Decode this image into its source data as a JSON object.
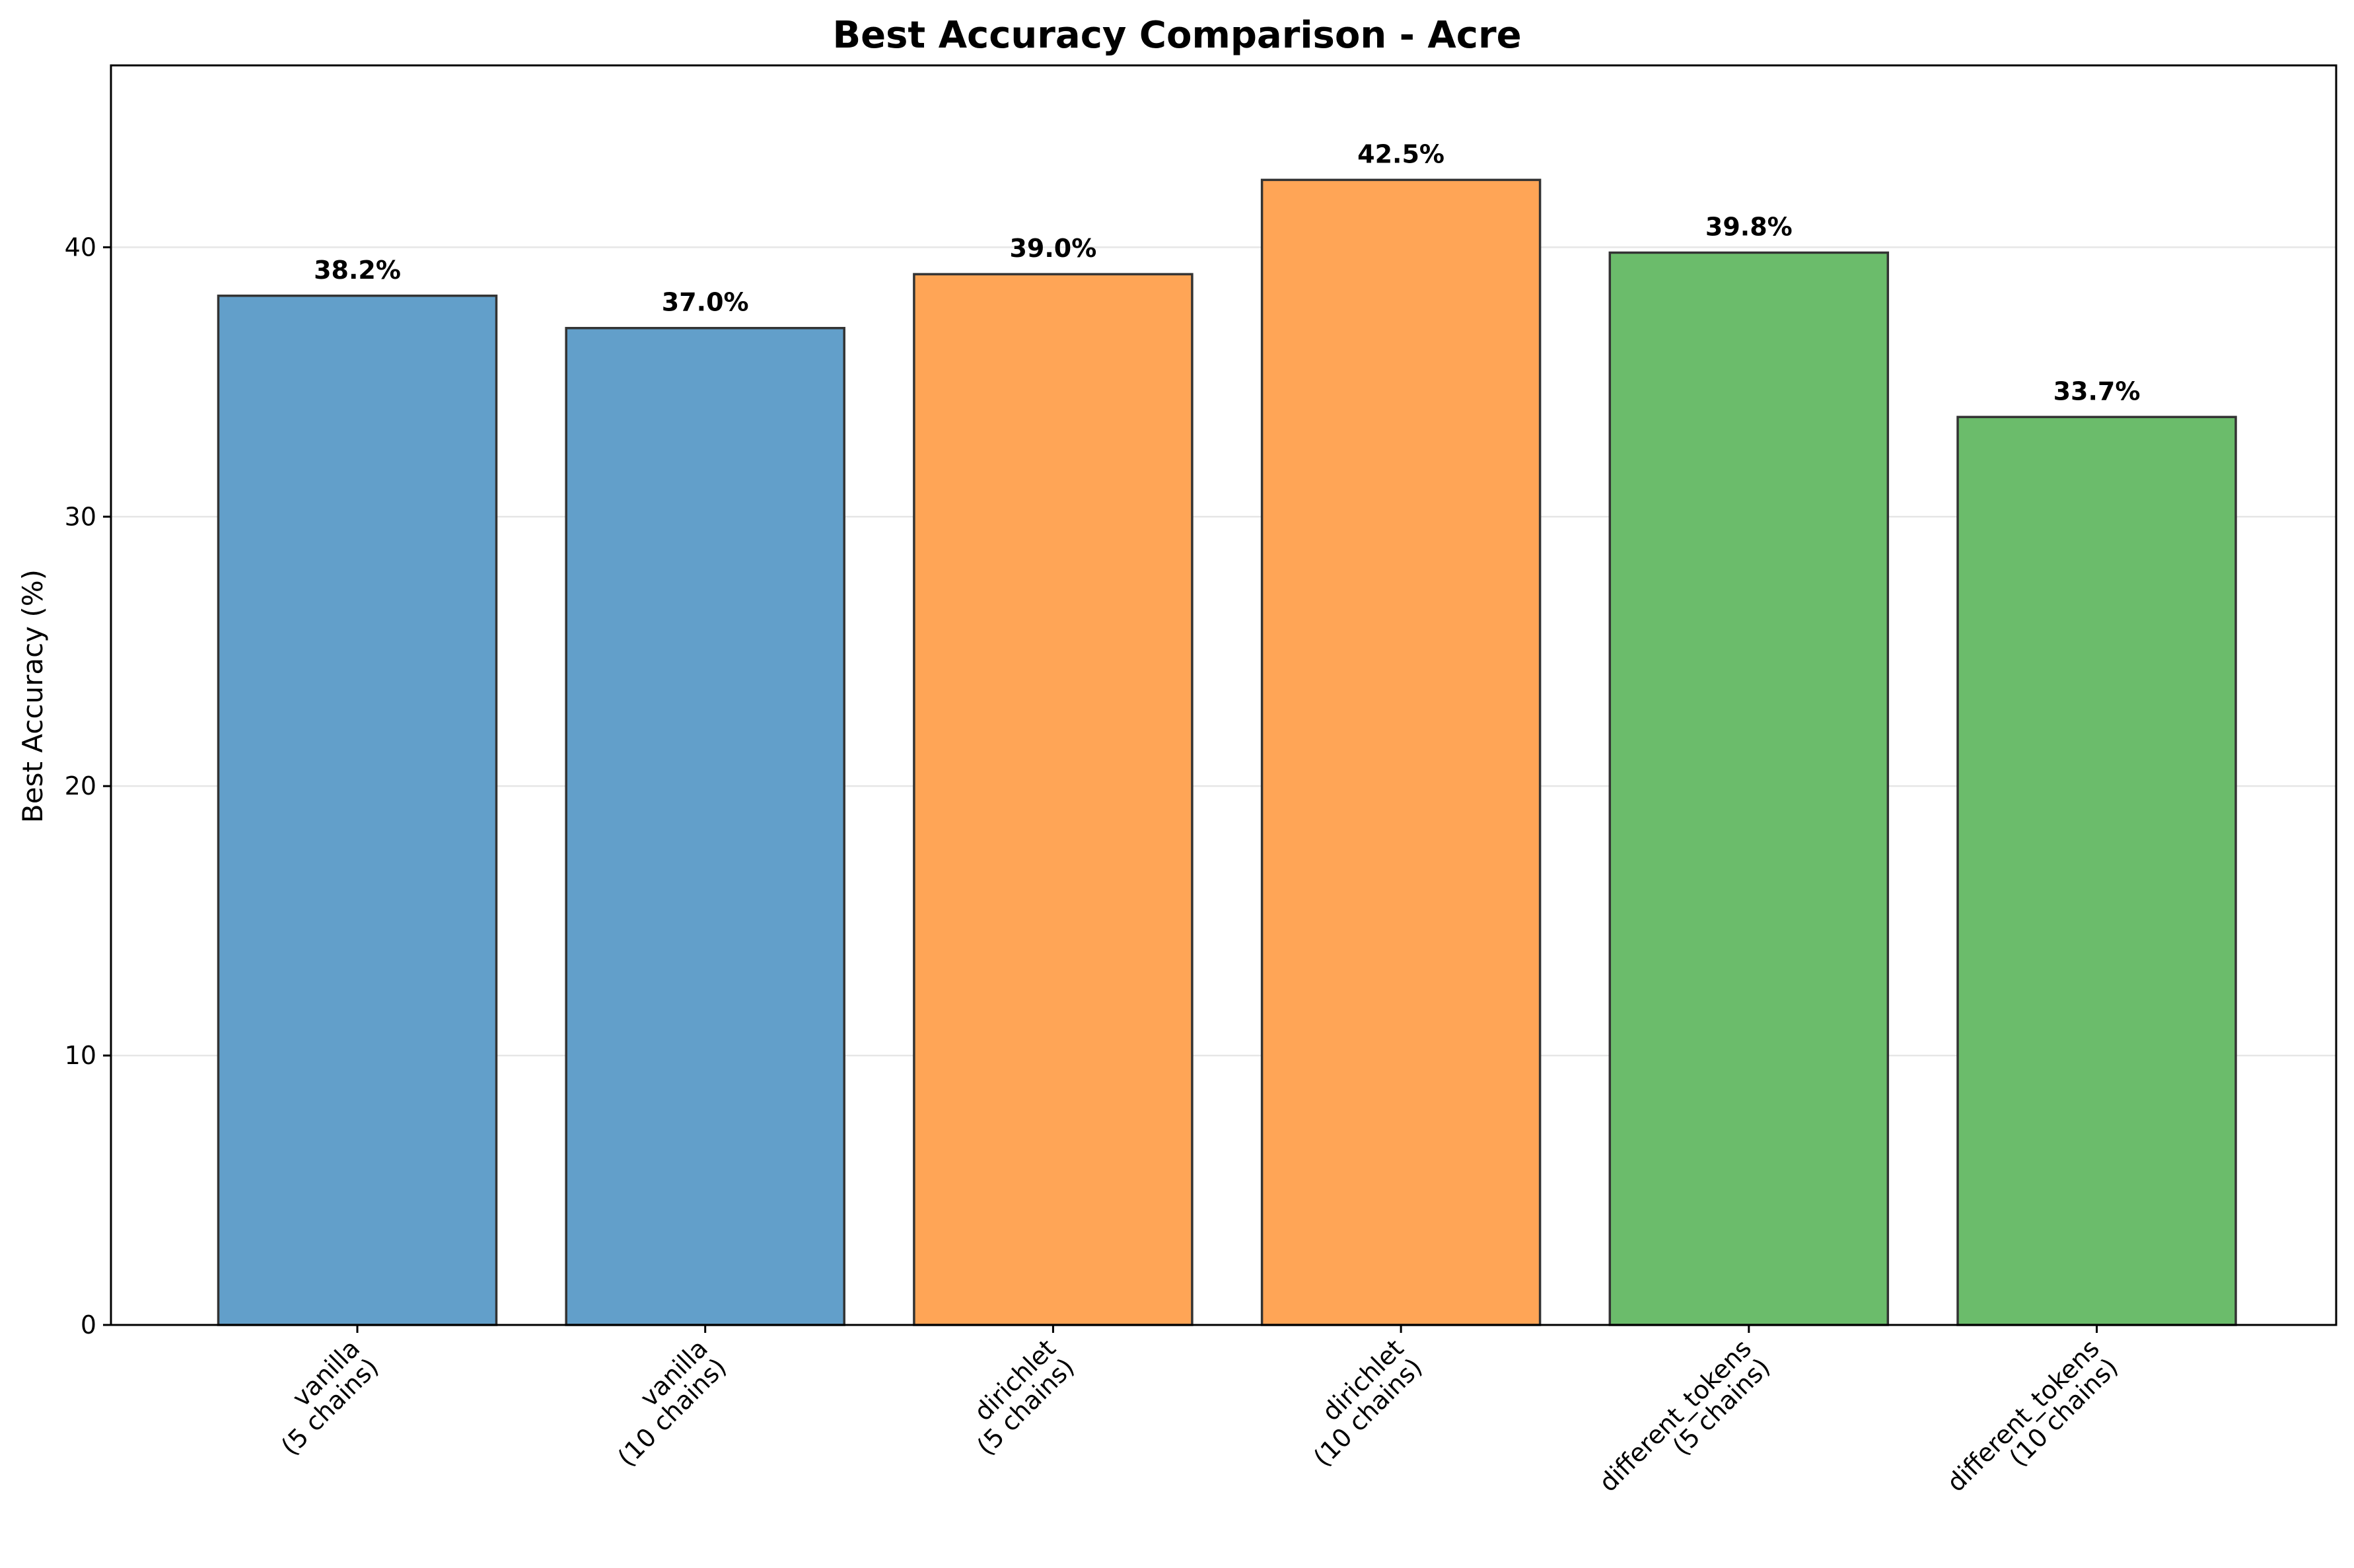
{
  "chart_data": {
    "type": "bar",
    "title": "Best Accuracy Comparison - Acre",
    "xlabel": "",
    "ylabel": "Best Accuracy (%)",
    "ylim": [
      0,
      46.75
    ],
    "yticks": [
      0,
      10,
      20,
      30,
      40
    ],
    "grid": "y",
    "categories": [
      "vanilla\n(5 chains)",
      "vanilla\n(10 chains)",
      "dirichlet\n(5 chains)",
      "dirichlet\n(10 chains)",
      "different_tokens\n(5 chains)",
      "different_tokens\n(10 chains)"
    ],
    "values": [
      38.2,
      37.0,
      39.0,
      42.5,
      39.8,
      33.7
    ],
    "data_labels": [
      "38.2%",
      "37.0%",
      "39.0%",
      "42.5%",
      "39.8%",
      "33.7%"
    ],
    "bar_colors": [
      "#629FCA",
      "#629FCA",
      "#FFA556",
      "#FFA556",
      "#6BBC6B",
      "#6BBC6B"
    ],
    "edge_color": "#333333",
    "grid_color": "#e6e6e6"
  }
}
